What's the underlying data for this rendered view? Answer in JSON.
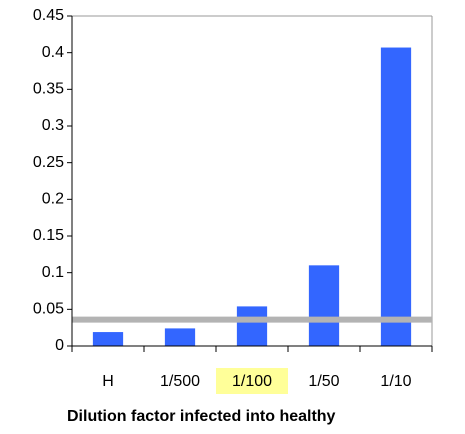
{
  "chart_data": {
    "type": "bar",
    "x_label": "Dilution factor infected into healthy",
    "categories": [
      "H",
      "1/500",
      "1/100",
      "1/50",
      "1/10"
    ],
    "values": [
      0.019,
      0.024,
      0.054,
      0.11,
      0.407
    ],
    "color": "#3366ff",
    "ylim": [
      0,
      0.45
    ],
    "yticks": [
      0,
      0.05,
      0.1,
      0.15,
      0.2,
      0.25,
      0.3,
      0.35,
      0.4,
      0.45
    ],
    "grid": false,
    "threshold": 0.036,
    "threshold_color": "#b3b3b3",
    "highlight_index": 2,
    "highlight_color": "#ffff99"
  }
}
